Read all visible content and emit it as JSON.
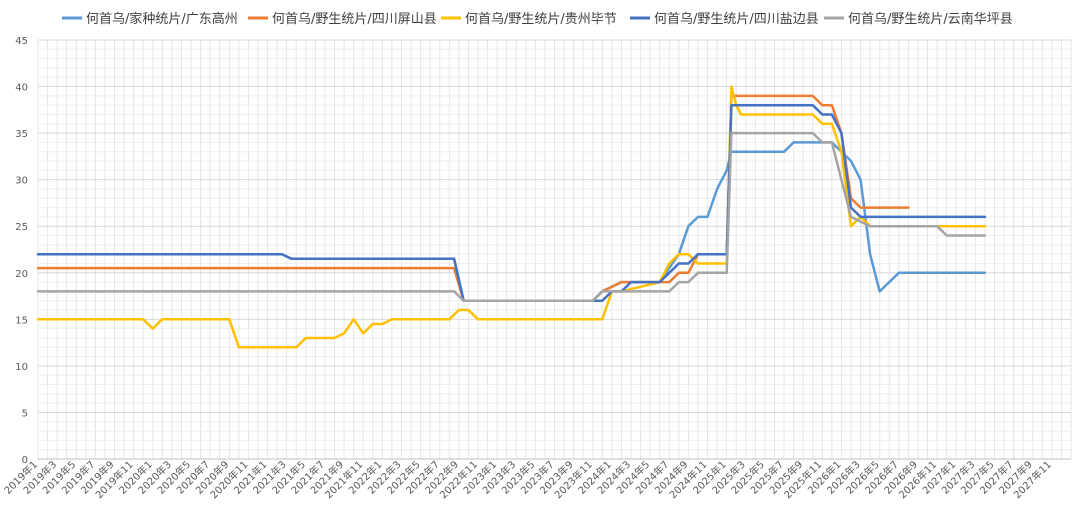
{
  "chart_data": {
    "type": "line",
    "title": "",
    "xlabel": "",
    "ylabel": "",
    "ylim": [
      0,
      45
    ],
    "yticks": [
      "0",
      "5",
      "10",
      "15",
      "20",
      "25",
      "30",
      "35",
      "40",
      "45"
    ],
    "grid": true,
    "legend_position": "top",
    "x_labels": [
      "2019年1",
      "2019年3",
      "2019年5",
      "2019年7",
      "2019年9",
      "2019年11",
      "2020年1",
      "2020年3",
      "2020年5",
      "2020年7",
      "2020年9",
      "2020年11",
      "2021年1",
      "2021年3",
      "2021年5",
      "2021年7",
      "2021年9",
      "2021年11",
      "2022年1",
      "2022年3",
      "2022年5",
      "2022年7",
      "2022年9",
      "2022年11",
      "2023年1",
      "2023年3",
      "2023年5",
      "2023年7",
      "2023年9",
      "2023年11",
      "2024年1",
      "2024年3",
      "2024年5",
      "2024年7",
      "2024年9",
      "2024年11",
      "2025年1",
      "2025年3",
      "2025年5",
      "2025年7",
      "2025年9",
      "2025年11",
      "2026年1",
      "2026年3",
      "2026年5",
      "2026年7",
      "2026年9",
      "2026年11",
      "2027年1",
      "2027年3",
      "2027年5",
      "2027年7",
      "2027年9",
      "2027年11"
    ],
    "series": [
      {
        "name": "何首乌/家种统片/广东高州",
        "color": "#5B9BD5",
        "points": [
          [
            0,
            22
          ],
          [
            25.5,
            22
          ],
          [
            26.5,
            21.5
          ],
          [
            43.5,
            21.5
          ],
          [
            44.5,
            17
          ],
          [
            58,
            17
          ],
          [
            59,
            18
          ],
          [
            61,
            19
          ],
          [
            65,
            19
          ],
          [
            67,
            22
          ],
          [
            68,
            25
          ],
          [
            69,
            26
          ],
          [
            70,
            26
          ],
          [
            71,
            29
          ],
          [
            72,
            31
          ],
          [
            72.5,
            33
          ],
          [
            78,
            33
          ],
          [
            79,
            34
          ],
          [
            83,
            34
          ],
          [
            84,
            33
          ],
          [
            85,
            32
          ],
          [
            86,
            30
          ],
          [
            87,
            22
          ],
          [
            88,
            18
          ],
          [
            89,
            19
          ],
          [
            90,
            20
          ],
          [
            99,
            20
          ]
        ]
      },
      {
        "name": "何首乌/野生统片/四川屏山县",
        "color": "#ED7D31",
        "points": [
          [
            0,
            20.5
          ],
          [
            43.5,
            20.5
          ],
          [
            44.5,
            17
          ],
          [
            58,
            17
          ],
          [
            59,
            18
          ],
          [
            61,
            19
          ],
          [
            66,
            19
          ],
          [
            67,
            20
          ],
          [
            68,
            20
          ],
          [
            69,
            22
          ],
          [
            72,
            22
          ],
          [
            72.5,
            39
          ],
          [
            81,
            39
          ],
          [
            82,
            38
          ],
          [
            83,
            38
          ],
          [
            84,
            35
          ],
          [
            85,
            28
          ],
          [
            86,
            27
          ],
          [
            91,
            27
          ]
        ]
      },
      {
        "name": "何首乌/野生统片/贵州毕节",
        "color": "#FFC000",
        "points": [
          [
            0,
            15
          ],
          [
            11,
            15
          ],
          [
            12,
            14
          ],
          [
            13,
            15
          ],
          [
            20,
            15
          ],
          [
            21,
            12
          ],
          [
            27,
            12
          ],
          [
            28,
            13
          ],
          [
            31,
            13
          ],
          [
            32,
            13.5
          ],
          [
            33,
            15
          ],
          [
            34,
            13.5
          ],
          [
            35,
            14.5
          ],
          [
            36,
            14.5
          ],
          [
            37,
            15
          ],
          [
            43,
            15
          ],
          [
            44,
            16
          ],
          [
            45,
            16
          ],
          [
            46,
            15
          ],
          [
            59,
            15
          ],
          [
            60,
            18
          ],
          [
            61,
            18
          ],
          [
            65,
            19
          ],
          [
            66,
            21
          ],
          [
            67,
            22
          ],
          [
            68,
            22
          ],
          [
            69,
            21
          ],
          [
            72,
            21
          ],
          [
            72.5,
            40
          ],
          [
            73,
            38
          ],
          [
            73.5,
            37
          ],
          [
            81,
            37
          ],
          [
            82,
            36
          ],
          [
            83,
            36
          ],
          [
            84,
            33
          ],
          [
            85,
            25
          ],
          [
            86,
            26
          ],
          [
            87,
            25
          ],
          [
            99,
            25
          ]
        ]
      },
      {
        "name": "何首乌/野生统片/四川盐边县",
        "color": "#4472C4",
        "points": [
          [
            0,
            22
          ],
          [
            25.5,
            22
          ],
          [
            26.5,
            21.5
          ],
          [
            43.5,
            21.5
          ],
          [
            44.5,
            17
          ],
          [
            59,
            17
          ],
          [
            60,
            18
          ],
          [
            61,
            18
          ],
          [
            62,
            19
          ],
          [
            65,
            19
          ],
          [
            66,
            20
          ],
          [
            67,
            21
          ],
          [
            68,
            21
          ],
          [
            69,
            22
          ],
          [
            72,
            22
          ],
          [
            72.5,
            38
          ],
          [
            81,
            38
          ],
          [
            82,
            37
          ],
          [
            83,
            37
          ],
          [
            84,
            35
          ],
          [
            85,
            27
          ],
          [
            86,
            26
          ],
          [
            99,
            26
          ]
        ]
      },
      {
        "name": "何首乌/野生统片/云南华坪县",
        "color": "#A5A5A5",
        "points": [
          [
            0,
            18
          ],
          [
            43.5,
            18
          ],
          [
            44.5,
            17
          ],
          [
            58,
            17
          ],
          [
            59,
            18
          ],
          [
            66,
            18
          ],
          [
            67,
            19
          ],
          [
            68,
            19
          ],
          [
            69,
            20
          ],
          [
            72,
            20
          ],
          [
            72.5,
            35
          ],
          [
            81,
            35
          ],
          [
            82,
            34
          ],
          [
            83,
            34
          ],
          [
            84,
            30
          ],
          [
            85,
            26
          ],
          [
            86,
            25.5
          ],
          [
            87,
            25
          ],
          [
            94,
            25
          ],
          [
            95,
            24
          ],
          [
            99,
            24
          ]
        ]
      }
    ]
  }
}
